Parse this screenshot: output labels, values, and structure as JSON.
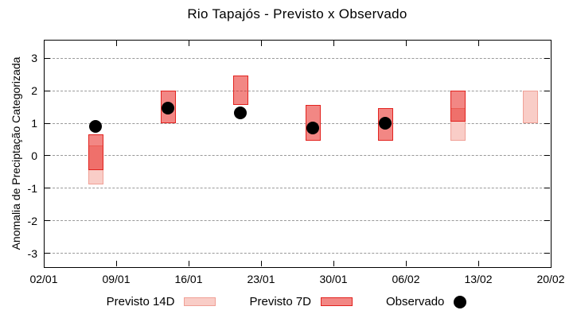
{
  "title": "Rio Tapajós - Previsto x Observado",
  "chart_data": {
    "type": "candlestick",
    "title": "Rio Tapajós - Previsto x Observado",
    "ylabel": "Anomalia de Preciptação Categorizada",
    "xlabel": "",
    "x_tick_labels": [
      "02/01",
      "09/01",
      "16/01",
      "23/01",
      "30/01",
      "06/02",
      "13/02",
      "20/02"
    ],
    "x_tick_days": [
      0,
      7,
      14,
      21,
      28,
      35,
      42,
      49
    ],
    "xlim_days": [
      0,
      49
    ],
    "y_ticks": [
      3,
      2,
      1,
      0,
      -1,
      -2,
      -3
    ],
    "ylim": [
      -3.44,
      3.56
    ],
    "grid": "horizontal-dashed",
    "legend_position": "below-plot",
    "points": [
      {
        "date": "07/01",
        "day": 5,
        "previsto_14d": [
          -0.9,
          0.3
        ],
        "previsto_7d": [
          -0.45,
          0.65
        ],
        "observado": 0.9
      },
      {
        "date": "14/01",
        "day": 12,
        "previsto_14d": null,
        "previsto_7d": [
          1.0,
          2.0
        ],
        "observado": 1.45
      },
      {
        "date": "21/01",
        "day": 19,
        "previsto_14d": null,
        "previsto_7d": [
          1.55,
          2.45
        ],
        "observado": 1.3
      },
      {
        "date": "28/01",
        "day": 26,
        "previsto_14d": null,
        "previsto_7d": [
          0.45,
          1.55
        ],
        "observado": 0.85
      },
      {
        "date": "04/02",
        "day": 33,
        "previsto_14d": null,
        "previsto_7d": [
          0.45,
          1.45
        ],
        "observado": 1.0
      },
      {
        "date": "11/02",
        "day": 40,
        "previsto_14d": [
          0.45,
          1.45
        ],
        "previsto_7d": [
          1.05,
          2.0
        ],
        "observado": null
      },
      {
        "date": "18/02",
        "day": 47,
        "previsto_14d": [
          1.0,
          2.0
        ],
        "previsto_7d": null,
        "observado": null
      }
    ],
    "legend": [
      {
        "label": "Previsto 14D",
        "swatch": "box-14d"
      },
      {
        "label": "Previsto 7D",
        "swatch": "box-7d"
      },
      {
        "label": "Observado",
        "swatch": "dot"
      }
    ]
  },
  "colors": {
    "background": "#ffffff",
    "axis": "#000000",
    "grid": "#999999",
    "previsto_14d_fill": "#f9cdc7",
    "previsto_14d_border": "#f0a096",
    "previsto_7d_fill": "rgba(232,36,31,0.55)",
    "previsto_7d_border": "#e2231f",
    "observado": "#000000"
  }
}
